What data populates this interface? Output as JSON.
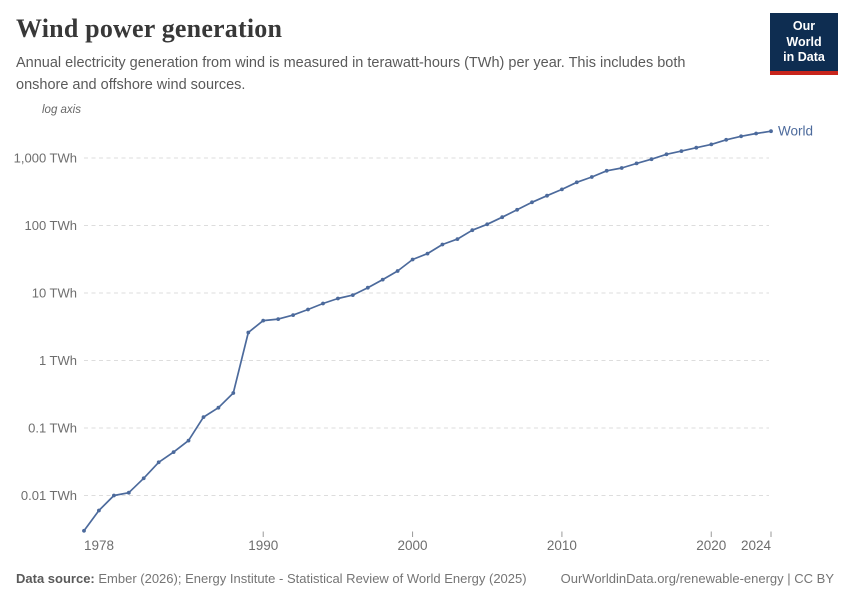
{
  "header": {
    "title": "Wind power generation",
    "subtitle": "Annual electricity generation from wind is measured in terawatt-hours (TWh) per year. This includes both onshore and offshore wind sources.",
    "logo": {
      "line1": "Our World",
      "line2": "in Data"
    }
  },
  "chart_data": {
    "type": "line",
    "y_scale": "log",
    "scale_label": "log axis",
    "title": "Wind power generation",
    "xlabel": "",
    "ylabel": "TWh",
    "grid": "horizontal-dashed",
    "legend_position": "end-of-line",
    "xlim": [
      1978,
      2024
    ],
    "ylim": [
      0.003,
      2800
    ],
    "x_ticks": [
      1978,
      1990,
      2000,
      2010,
      2020,
      2024
    ],
    "y_ticks": [
      {
        "value": 1000,
        "label": "1,000 TWh"
      },
      {
        "value": 100,
        "label": "100 TWh"
      },
      {
        "value": 10,
        "label": "10 TWh"
      },
      {
        "value": 1,
        "label": "1 TWh"
      },
      {
        "value": 0.1,
        "label": "0.1 TWh"
      },
      {
        "value": 0.01,
        "label": "0.01 TWh"
      }
    ],
    "series": [
      {
        "name": "World",
        "color": "#4C6A9C",
        "x": [
          1978,
          1979,
          1980,
          1981,
          1982,
          1983,
          1984,
          1985,
          1986,
          1987,
          1988,
          1989,
          1990,
          1991,
          1992,
          1993,
          1994,
          1995,
          1996,
          1997,
          1998,
          1999,
          2000,
          2001,
          2002,
          2003,
          2004,
          2005,
          2006,
          2007,
          2008,
          2009,
          2010,
          2011,
          2012,
          2013,
          2014,
          2015,
          2016,
          2017,
          2018,
          2019,
          2020,
          2021,
          2022,
          2023,
          2024
        ],
        "values": [
          0.003,
          0.006,
          0.01,
          0.011,
          0.018,
          0.031,
          0.044,
          0.065,
          0.145,
          0.2,
          0.33,
          2.6,
          3.9,
          4.1,
          4.7,
          5.7,
          7.0,
          8.3,
          9.3,
          12.0,
          15.8,
          21.2,
          31.4,
          38.4,
          52.3,
          62.9,
          85.1,
          104.1,
          132.9,
          170.7,
          220.6,
          275.9,
          342.1,
          436.8,
          523.6,
          645.7,
          712.0,
          831.8,
          958.5,
          1134,
          1265,
          1420,
          1591,
          1862,
          2098,
          2310,
          2494
        ]
      }
    ]
  },
  "footer": {
    "source_label": "Data source:",
    "source_text": " Ember (2026); Energy Institute - Statistical Review of World Energy (2025)",
    "credit": "OurWorldinData.org/renewable-energy | CC BY"
  },
  "colors": {
    "accent": "#4C6A9C",
    "logo_bg": "#0E2D51",
    "logo_stripe": "#C8251C",
    "grid_line": "#DDDDDD",
    "tick_text": "#6E6E6E",
    "tick_mark": "#9A9A9A"
  }
}
